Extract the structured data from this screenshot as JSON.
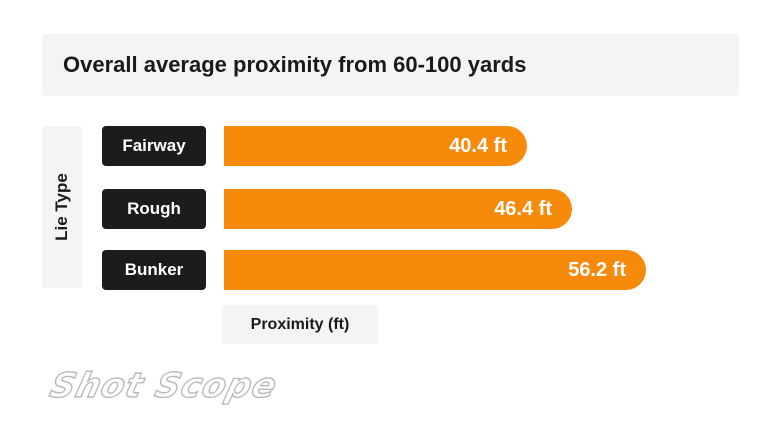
{
  "chart_data": {
    "type": "bar",
    "orientation": "horizontal",
    "title": "Overall average proximity from 60-100 yards",
    "xlabel": "Proximity (ft)",
    "ylabel": "Lie Type",
    "categories": [
      "Fairway",
      "Rough",
      "Bunker"
    ],
    "values": [
      40.4,
      46.4,
      56.2
    ],
    "value_labels": [
      "40.4 ft",
      "46.4 ft",
      "56.2 ft"
    ],
    "xlim": [
      0,
      62
    ],
    "grid": false,
    "legend": "none",
    "bar_color": "#f88a0b",
    "label_box_color": "#1c1c1c"
  },
  "brand": {
    "name": "Shot Scope"
  }
}
